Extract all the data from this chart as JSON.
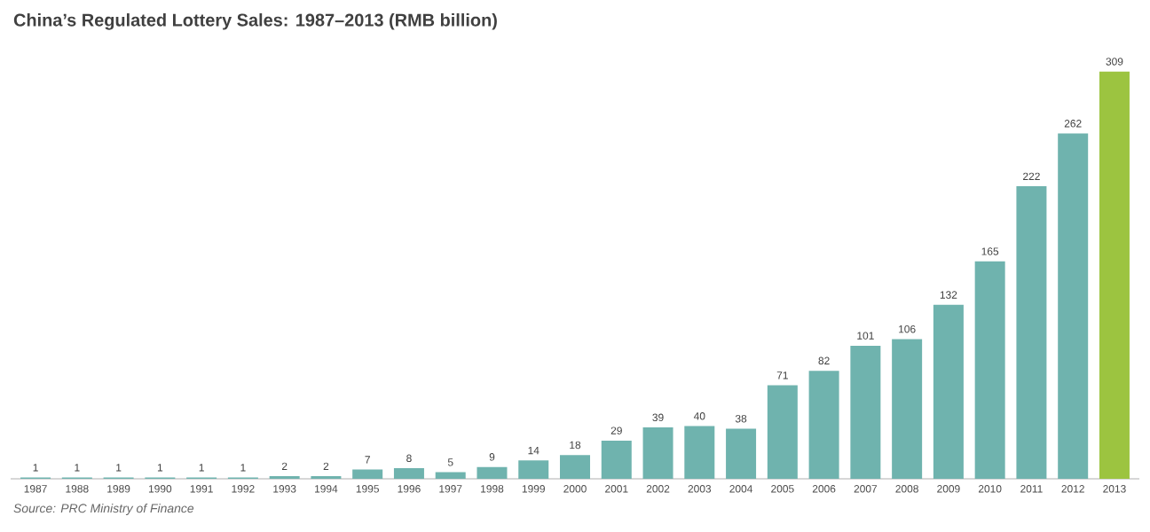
{
  "chart_data": {
    "type": "bar",
    "title": "China’s Regulated Lottery Sales: 1987–2013 (RMB billion)",
    "categories": [
      "1987",
      "1988",
      "1989",
      "1990",
      "1991",
      "1992",
      "1993",
      "1994",
      "1995",
      "1996",
      "1997",
      "1998",
      "1999",
      "2000",
      "2001",
      "2002",
      "2003",
      "2004",
      "2005",
      "2006",
      "2007",
      "2008",
      "2009",
      "2010",
      "2011",
      "2012",
      "2013"
    ],
    "values": [
      1,
      1,
      1,
      1,
      1,
      1,
      2,
      2,
      7,
      8,
      5,
      9,
      14,
      18,
      29,
      39,
      40,
      38,
      71,
      82,
      101,
      106,
      132,
      165,
      222,
      262,
      309
    ],
    "colors": [
      "#6fb3ae",
      "#6fb3ae",
      "#6fb3ae",
      "#6fb3ae",
      "#6fb3ae",
      "#6fb3ae",
      "#6fb3ae",
      "#6fb3ae",
      "#6fb3ae",
      "#6fb3ae",
      "#6fb3ae",
      "#6fb3ae",
      "#6fb3ae",
      "#6fb3ae",
      "#6fb3ae",
      "#6fb3ae",
      "#6fb3ae",
      "#6fb3ae",
      "#6fb3ae",
      "#6fb3ae",
      "#6fb3ae",
      "#6fb3ae",
      "#6fb3ae",
      "#6fb3ae",
      "#6fb3ae",
      "#6fb3ae",
      "#9cc440"
    ],
    "data_labels": true,
    "annotations": [
      "Source: PRC Ministry of Finance"
    ]
  }
}
